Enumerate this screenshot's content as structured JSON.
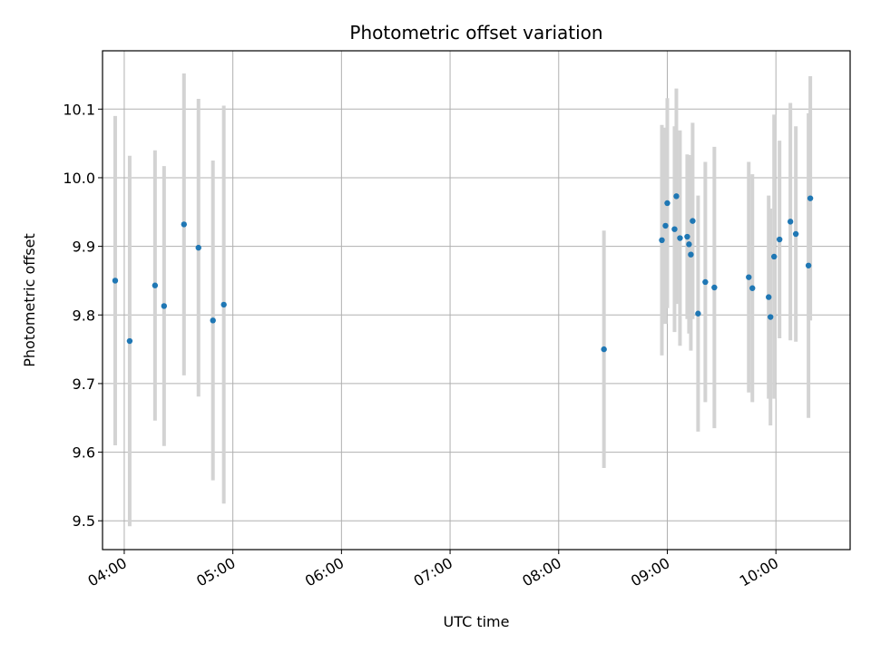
{
  "chart_data": {
    "type": "scatter",
    "title": "Photometric offset variation",
    "xlabel": "UTC time",
    "ylabel": "Photometric offset",
    "grid": true,
    "xlim": [
      "03:48",
      "10:41"
    ],
    "ylim": [
      9.458,
      10.185
    ],
    "x_ticks": [
      "04:00",
      "05:00",
      "06:00",
      "07:00",
      "08:00",
      "09:00",
      "10:00"
    ],
    "y_ticks": [
      9.5,
      9.6,
      9.7,
      9.8,
      9.9,
      10.0,
      10.1
    ],
    "y_tick_labels": [
      "9.5",
      "9.6",
      "9.7",
      "9.8",
      "9.9",
      "10.0",
      "10.1"
    ],
    "point_color": "#1f77b4",
    "errorbar_color": "#d3d3d3",
    "points": [
      {
        "t": "03:55",
        "y": 9.85,
        "err": 0.24
      },
      {
        "t": "04:03",
        "y": 9.762,
        "err": 0.27
      },
      {
        "t": "04:17",
        "y": 9.843,
        "err": 0.197
      },
      {
        "t": "04:22",
        "y": 9.813,
        "err": 0.204
      },
      {
        "t": "04:33",
        "y": 9.932,
        "err": 0.22
      },
      {
        "t": "04:41",
        "y": 9.898,
        "err": 0.217
      },
      {
        "t": "04:49",
        "y": 9.792,
        "err": 0.233
      },
      {
        "t": "04:55",
        "y": 9.815,
        "err": 0.29
      },
      {
        "t": "08:25",
        "y": 9.75,
        "err": 0.173
      },
      {
        "t": "08:57",
        "y": 9.909,
        "err": 0.168
      },
      {
        "t": "08:59",
        "y": 9.93,
        "err": 0.143
      },
      {
        "t": "09:00",
        "y": 9.963,
        "err": 0.153
      },
      {
        "t": "09:04",
        "y": 9.925,
        "err": 0.15
      },
      {
        "t": "09:05",
        "y": 9.973,
        "err": 0.157
      },
      {
        "t": "09:07",
        "y": 9.912,
        "err": 0.157
      },
      {
        "t": "09:11",
        "y": 9.914,
        "err": 0.12
      },
      {
        "t": "09:12",
        "y": 9.903,
        "err": 0.13
      },
      {
        "t": "09:13",
        "y": 9.888,
        "err": 0.14
      },
      {
        "t": "09:14",
        "y": 9.937,
        "err": 0.143
      },
      {
        "t": "09:17",
        "y": 9.802,
        "err": 0.172
      },
      {
        "t": "09:21",
        "y": 9.848,
        "err": 0.175
      },
      {
        "t": "09:26",
        "y": 9.84,
        "err": 0.205
      },
      {
        "t": "09:45",
        "y": 9.855,
        "err": 0.168
      },
      {
        "t": "09:47",
        "y": 9.839,
        "err": 0.166
      },
      {
        "t": "09:56",
        "y": 9.826,
        "err": 0.148
      },
      {
        "t": "09:57",
        "y": 9.797,
        "err": 0.158
      },
      {
        "t": "09:59",
        "y": 9.885,
        "err": 0.207
      },
      {
        "t": "10:02",
        "y": 9.91,
        "err": 0.144
      },
      {
        "t": "10:08",
        "y": 9.936,
        "err": 0.173
      },
      {
        "t": "10:11",
        "y": 9.918,
        "err": 0.157
      },
      {
        "t": "10:18",
        "y": 9.872,
        "err": 0.222
      },
      {
        "t": "10:19",
        "y": 9.97,
        "err": 0.178
      }
    ]
  }
}
